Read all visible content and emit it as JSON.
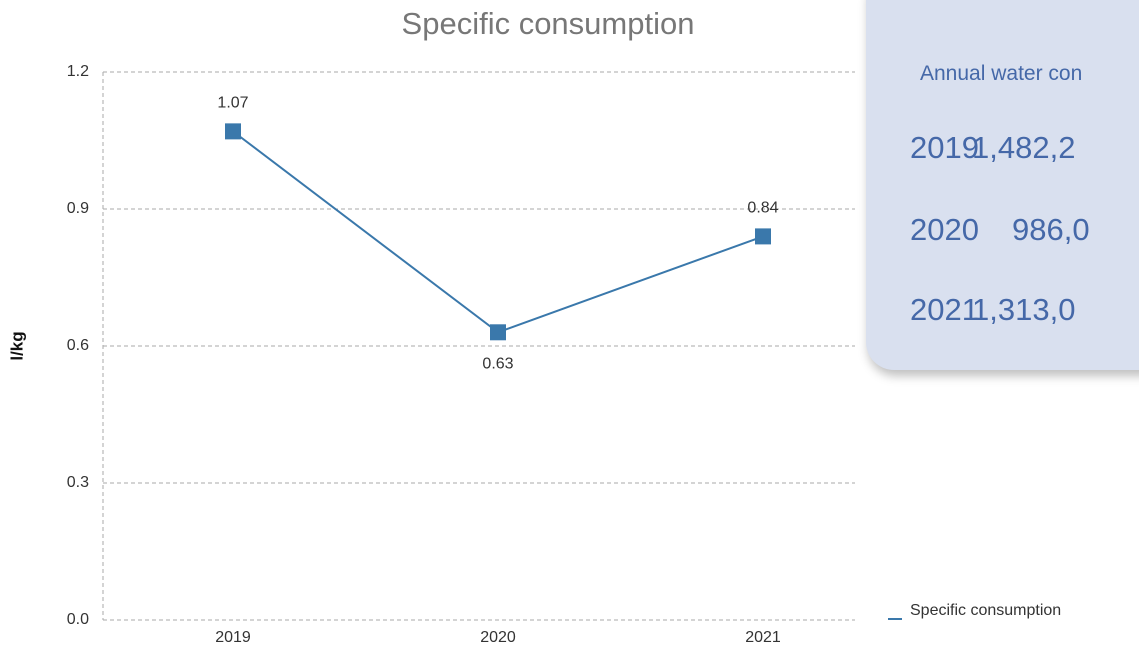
{
  "chart_data": {
    "type": "line",
    "title": "Specific consumption",
    "y_label": "l/kg",
    "categories": [
      "2019",
      "2020",
      "2021"
    ],
    "series": [
      {
        "name": "Specific consumption",
        "color": "#3a78ab",
        "values": [
          1.07,
          0.63,
          0.84
        ]
      }
    ],
    "ylim": [
      0,
      1.2
    ],
    "yticks": [
      {
        "value": 0,
        "label": "0.0"
      },
      0.3,
      0.6,
      0.9,
      1.2
    ],
    "grid": true,
    "legend": "bottom-right"
  },
  "panel": {
    "title": "Annual water con",
    "rows": [
      [
        "2019",
        "1,482,2"
      ],
      [
        "2020",
        "986,0"
      ],
      [
        "2021",
        "1,313,0"
      ]
    ]
  }
}
